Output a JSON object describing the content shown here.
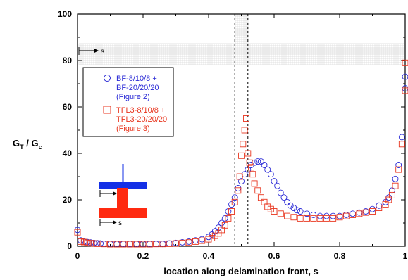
{
  "chart_data": {
    "type": "scatter",
    "xlabel": "location along delamination front, s",
    "ylabel_main": "G",
    "ylabel_sub1": "T",
    "ylabel_mid": " / G",
    "ylabel_sub2": "c",
    "xlim": [
      0,
      1
    ],
    "ylim": [
      0,
      100
    ],
    "x_ticks": [
      "0",
      "0.2",
      "0.4",
      "0.6",
      "0.8",
      "1"
    ],
    "y_ticks": [
      "0",
      "20",
      "40",
      "60",
      "80",
      "100"
    ],
    "grid": false,
    "legend_position": "upper-left",
    "reference_lines_x": [
      0.48,
      0.52
    ],
    "series": [
      {
        "name_lines": [
          "BF-8/10/8 +",
          "BF-20/20/20",
          " (Figure 2)"
        ],
        "marker": "circle",
        "color": "#2b2bd6",
        "points": [
          [
            0.0,
            7
          ],
          [
            0.01,
            2.5
          ],
          [
            0.02,
            2
          ],
          [
            0.03,
            1.8
          ],
          [
            0.04,
            1.6
          ],
          [
            0.05,
            1.4
          ],
          [
            0.06,
            1.3
          ],
          [
            0.07,
            1.2
          ],
          [
            0.08,
            1.1
          ],
          [
            0.1,
            1
          ],
          [
            0.12,
            1
          ],
          [
            0.14,
            1
          ],
          [
            0.16,
            1
          ],
          [
            0.18,
            1
          ],
          [
            0.2,
            1
          ],
          [
            0.22,
            1
          ],
          [
            0.24,
            1
          ],
          [
            0.26,
            1
          ],
          [
            0.28,
            1.2
          ],
          [
            0.3,
            1.4
          ],
          [
            0.32,
            1.7
          ],
          [
            0.34,
            2
          ],
          [
            0.36,
            2.5
          ],
          [
            0.38,
            3
          ],
          [
            0.4,
            4
          ],
          [
            0.41,
            5
          ],
          [
            0.42,
            6.5
          ],
          [
            0.43,
            8
          ],
          [
            0.44,
            10
          ],
          [
            0.45,
            12
          ],
          [
            0.46,
            15
          ],
          [
            0.47,
            18
          ],
          [
            0.48,
            21
          ],
          [
            0.49,
            25
          ],
          [
            0.5,
            28
          ],
          [
            0.51,
            31
          ],
          [
            0.52,
            33
          ],
          [
            0.53,
            35
          ],
          [
            0.54,
            36
          ],
          [
            0.55,
            36.5
          ],
          [
            0.56,
            36.5
          ],
          [
            0.57,
            35
          ],
          [
            0.58,
            33
          ],
          [
            0.59,
            31
          ],
          [
            0.6,
            28
          ],
          [
            0.61,
            26
          ],
          [
            0.62,
            23
          ],
          [
            0.63,
            21
          ],
          [
            0.64,
            19
          ],
          [
            0.65,
            17.5
          ],
          [
            0.66,
            16.5
          ],
          [
            0.67,
            15.5
          ],
          [
            0.68,
            15
          ],
          [
            0.7,
            14
          ],
          [
            0.72,
            13.5
          ],
          [
            0.74,
            13
          ],
          [
            0.76,
            13
          ],
          [
            0.78,
            13
          ],
          [
            0.8,
            13
          ],
          [
            0.82,
            13.5
          ],
          [
            0.84,
            14
          ],
          [
            0.86,
            14.5
          ],
          [
            0.88,
            15
          ],
          [
            0.9,
            16
          ],
          [
            0.92,
            17.5
          ],
          [
            0.94,
            19
          ],
          [
            0.95,
            21
          ],
          [
            0.96,
            24
          ],
          [
            0.97,
            29
          ],
          [
            0.98,
            35
          ],
          [
            0.99,
            47
          ],
          [
            1.0,
            73
          ],
          [
            1.0,
            68
          ]
        ]
      },
      {
        "name_lines": [
          "TFL3-8/10/8 +",
          "TFL3-20/20/20",
          "(Figure 3)"
        ],
        "marker": "square",
        "color": "#e8361f",
        "points": [
          [
            0.0,
            6
          ],
          [
            0.01,
            2
          ],
          [
            0.02,
            1.8
          ],
          [
            0.03,
            1.5
          ],
          [
            0.04,
            1.3
          ],
          [
            0.05,
            1.2
          ],
          [
            0.06,
            1.1
          ],
          [
            0.08,
            1
          ],
          [
            0.1,
            0.9
          ],
          [
            0.12,
            0.9
          ],
          [
            0.14,
            0.9
          ],
          [
            0.16,
            0.9
          ],
          [
            0.18,
            0.9
          ],
          [
            0.2,
            0.9
          ],
          [
            0.22,
            0.9
          ],
          [
            0.24,
            1
          ],
          [
            0.26,
            1
          ],
          [
            0.28,
            1.1
          ],
          [
            0.3,
            1.2
          ],
          [
            0.32,
            1.4
          ],
          [
            0.34,
            1.6
          ],
          [
            0.36,
            2
          ],
          [
            0.38,
            2.4
          ],
          [
            0.4,
            3
          ],
          [
            0.41,
            3.5
          ],
          [
            0.42,
            4.5
          ],
          [
            0.43,
            5.5
          ],
          [
            0.44,
            7
          ],
          [
            0.45,
            9
          ],
          [
            0.46,
            12
          ],
          [
            0.47,
            15
          ],
          [
            0.48,
            19
          ],
          [
            0.49,
            24
          ],
          [
            0.495,
            30
          ],
          [
            0.5,
            39
          ],
          [
            0.505,
            44
          ],
          [
            0.51,
            50
          ],
          [
            0.515,
            55
          ],
          [
            0.52,
            40
          ],
          [
            0.525,
            36
          ],
          [
            0.53,
            34
          ],
          [
            0.535,
            31
          ],
          [
            0.54,
            27
          ],
          [
            0.55,
            24
          ],
          [
            0.56,
            21
          ],
          [
            0.57,
            19
          ],
          [
            0.58,
            17
          ],
          [
            0.59,
            16
          ],
          [
            0.6,
            15
          ],
          [
            0.62,
            14
          ],
          [
            0.64,
            13
          ],
          [
            0.66,
            12.5
          ],
          [
            0.68,
            12
          ],
          [
            0.7,
            12
          ],
          [
            0.72,
            12
          ],
          [
            0.74,
            12
          ],
          [
            0.76,
            12
          ],
          [
            0.78,
            12
          ],
          [
            0.8,
            12.5
          ],
          [
            0.82,
            13
          ],
          [
            0.84,
            13.5
          ],
          [
            0.86,
            14
          ],
          [
            0.88,
            14.5
          ],
          [
            0.9,
            15
          ],
          [
            0.92,
            16.5
          ],
          [
            0.94,
            18
          ],
          [
            0.95,
            20
          ],
          [
            0.96,
            22
          ],
          [
            0.97,
            26
          ],
          [
            0.98,
            33
          ],
          [
            0.99,
            44
          ],
          [
            1.0,
            79
          ],
          [
            1.0,
            67
          ]
        ]
      }
    ],
    "inset_labels": {
      "top_specimen_s": "s",
      "blue_specimen_s": "s",
      "red_specimen_s": "s"
    }
  },
  "colors": {
    "blue": "#2b2bd6",
    "red": "#e8361f",
    "inset_blue": "#1430e6",
    "inset_red": "#ff2a10"
  }
}
